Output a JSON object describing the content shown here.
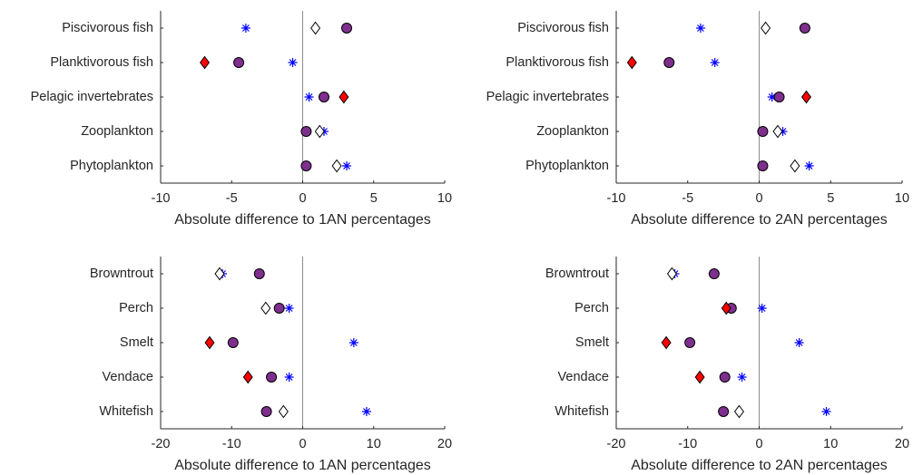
{
  "chart_data": [
    {
      "type": "scatter",
      "xlabel": "Absolute difference to 1AN percentages",
      "categories": [
        "Piscivorous fish",
        "Planktivorous fish",
        "Pelagic invertebrates",
        "Zooplankton",
        "Phytoplankton"
      ],
      "xlim": [
        -10,
        10
      ],
      "xticks": [
        -10,
        -5,
        0,
        5,
        10
      ],
      "series": [
        {
          "marker": "asterisk",
          "color": "#0000ff",
          "values": [
            -4.0,
            -0.7,
            0.45,
            1.5,
            3.1
          ]
        },
        {
          "marker": "diamond",
          "color": "#ffffff",
          "values": [
            0.9,
            null,
            null,
            1.2,
            2.4
          ]
        },
        {
          "marker": "circle",
          "color": "#7e2f8e",
          "values": [
            3.1,
            -4.5,
            1.5,
            0.25,
            0.25
          ]
        },
        {
          "marker": "diamond",
          "color": "#ff0000",
          "values": [
            null,
            -6.9,
            2.9,
            null,
            null
          ]
        }
      ]
    },
    {
      "type": "scatter",
      "xlabel": "Absolute difference to 2AN percentages",
      "categories": [
        "Piscivorous fish",
        "Planktivorous fish",
        "Pelagic invertebrates",
        "Zooplankton",
        "Phytoplankton"
      ],
      "xlim": [
        -10,
        10
      ],
      "xticks": [
        -10,
        -5,
        0,
        5,
        10
      ],
      "series": [
        {
          "marker": "asterisk",
          "color": "#0000ff",
          "values": [
            -4.1,
            -3.1,
            0.9,
            1.65,
            3.5
          ]
        },
        {
          "marker": "diamond",
          "color": "#ffffff",
          "values": [
            0.45,
            null,
            null,
            1.3,
            2.5
          ]
        },
        {
          "marker": "circle",
          "color": "#7e2f8e",
          "values": [
            3.2,
            -6.3,
            1.4,
            0.25,
            0.25
          ]
        },
        {
          "marker": "diamond",
          "color": "#ff0000",
          "values": [
            null,
            -8.9,
            3.3,
            null,
            null
          ]
        }
      ]
    },
    {
      "type": "scatter",
      "xlabel": "Absolute difference to 1AN percentages",
      "categories": [
        "Browntrout",
        "Perch",
        "Smelt",
        "Vendace",
        "Whitefish"
      ],
      "xlim": [
        -20,
        20
      ],
      "xticks": [
        -20,
        -10,
        0,
        10,
        20
      ],
      "series": [
        {
          "marker": "asterisk",
          "color": "#0000ff",
          "values": [
            -11.3,
            -1.9,
            7.2,
            -1.9,
            9.0
          ]
        },
        {
          "marker": "diamond",
          "color": "#ffffff",
          "values": [
            -11.7,
            -5.2,
            null,
            null,
            -2.7
          ]
        },
        {
          "marker": "circle",
          "color": "#7e2f8e",
          "values": [
            -6.1,
            -3.3,
            -9.8,
            -4.4,
            -5.1
          ]
        },
        {
          "marker": "diamond",
          "color": "#ff0000",
          "values": [
            null,
            null,
            -13.1,
            -7.7,
            null
          ]
        }
      ]
    },
    {
      "type": "scatter",
      "xlabel": "Absolute difference to 2AN percentages",
      "categories": [
        "Browntrout",
        "Perch",
        "Smelt",
        "Vendace",
        "Whitefish"
      ],
      "xlim": [
        -20,
        20
      ],
      "xticks": [
        -20,
        -10,
        0,
        10,
        20
      ],
      "series": [
        {
          "marker": "asterisk",
          "color": "#0000ff",
          "values": [
            -11.8,
            0.4,
            5.6,
            -2.4,
            9.4
          ]
        },
        {
          "marker": "diamond",
          "color": "#ffffff",
          "values": [
            -12.2,
            null,
            null,
            null,
            -2.8
          ]
        },
        {
          "marker": "circle",
          "color": "#7e2f8e",
          "values": [
            -6.3,
            -3.9,
            -9.7,
            -4.8,
            -5.0
          ]
        },
        {
          "marker": "diamond",
          "color": "#ff0000",
          "values": [
            null,
            -4.6,
            -13,
            -8.3,
            null
          ]
        }
      ]
    }
  ]
}
